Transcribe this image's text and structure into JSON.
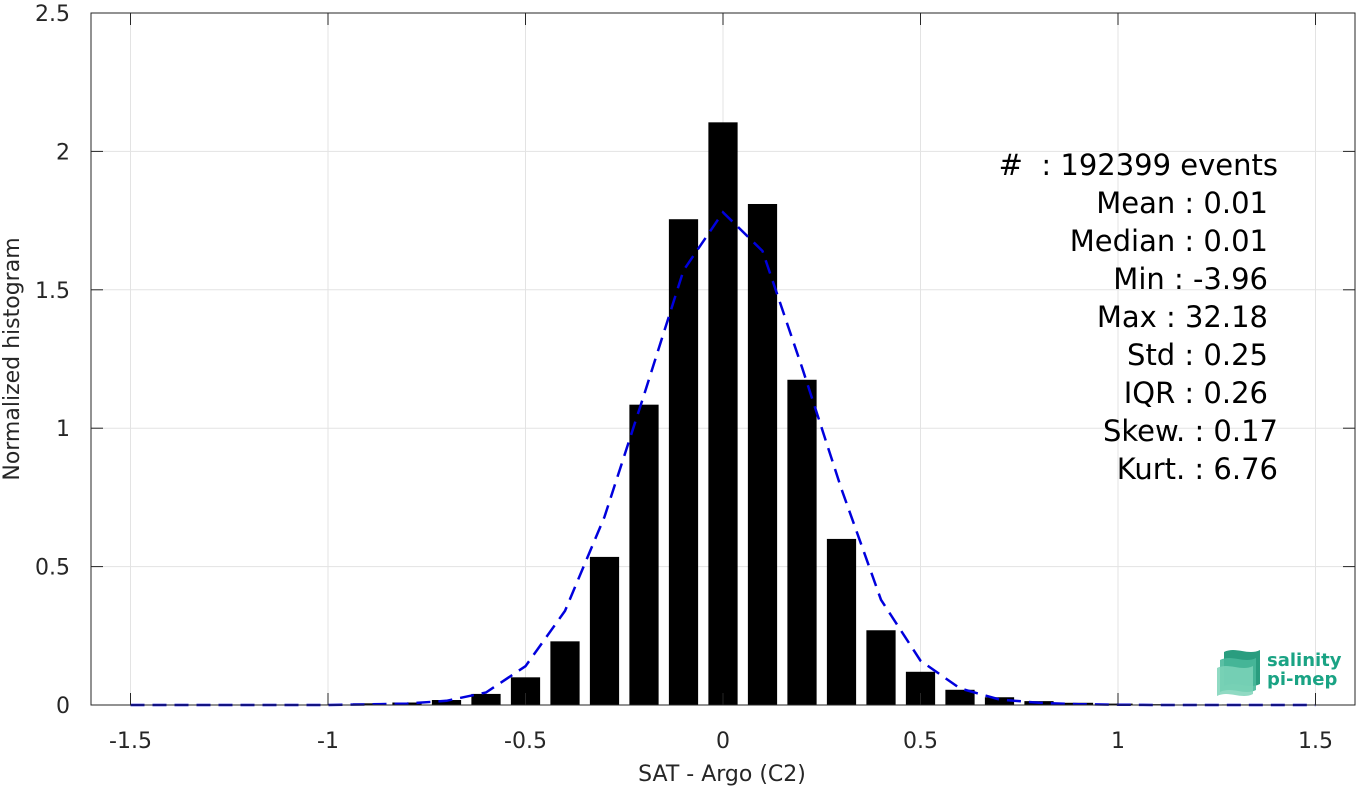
{
  "chart_data": {
    "type": "bar",
    "xlabel": "SAT - Argo (C2)",
    "ylabel": "Normalized histogram",
    "xlim": [
      -1.6,
      1.6
    ],
    "ylim": [
      0,
      2.5
    ],
    "x_ticks": [
      -1.5,
      -1,
      -0.5,
      0,
      0.5,
      1,
      1.5
    ],
    "x_tick_labels": [
      "-1.5",
      "-1",
      "-0.5",
      "0",
      "0.5",
      "1",
      "1.5"
    ],
    "y_ticks": [
      0,
      0.5,
      1,
      1.5,
      2,
      2.5
    ],
    "y_tick_labels": [
      "0",
      "0.5",
      "1",
      "1.5",
      "2",
      "2.5"
    ],
    "grid": true,
    "bar_color": "#000000",
    "bars": {
      "x": [
        -1.5,
        -1.4,
        -1.3,
        -1.2,
        -1.1,
        -1.0,
        -0.9,
        -0.8,
        -0.7,
        -0.6,
        -0.5,
        -0.4,
        -0.3,
        -0.2,
        -0.1,
        0.0,
        0.1,
        0.2,
        0.3,
        0.4,
        0.5,
        0.6,
        0.7,
        0.8,
        0.9,
        1.0,
        1.1,
        1.2,
        1.3,
        1.4,
        1.5
      ],
      "values": [
        0.001,
        0.001,
        0.001,
        0.001,
        0.001,
        0.002,
        0.006,
        0.009,
        0.018,
        0.04,
        0.1,
        0.23,
        0.535,
        1.085,
        1.755,
        2.105,
        1.81,
        1.175,
        0.6,
        0.27,
        0.12,
        0.055,
        0.028,
        0.014,
        0.008,
        0.005,
        0.003,
        0.002,
        0.002,
        0.001,
        0.001
      ]
    },
    "fit_curve": {
      "style": "dashed",
      "color": "#0000dd",
      "x": [
        -1.5,
        -1.4,
        -1.3,
        -1.2,
        -1.1,
        -1.0,
        -0.9,
        -0.8,
        -0.7,
        -0.6,
        -0.5,
        -0.4,
        -0.3,
        -0.2,
        -0.1,
        0.0,
        0.1,
        0.2,
        0.3,
        0.4,
        0.5,
        0.6,
        0.7,
        0.8,
        0.9,
        1.0,
        1.1,
        1.2,
        1.3,
        1.4,
        1.5
      ],
      "y": [
        0.0,
        0.0,
        0.0,
        0.0,
        0.0,
        0.0,
        0.002,
        0.005,
        0.015,
        0.045,
        0.14,
        0.34,
        0.68,
        1.12,
        1.57,
        1.78,
        1.64,
        1.22,
        0.78,
        0.38,
        0.16,
        0.06,
        0.02,
        0.008,
        0.003,
        0.001,
        0.0,
        0.0,
        0.0,
        0.0,
        0.0
      ]
    },
    "annotations": {
      "events": "#  : 192399 events",
      "mean": "Mean : 0.01",
      "median": "Median : 0.01",
      "min": "Min : -3.96",
      "max": "Max : 32.18",
      "std": "Std : 0.25",
      "iqr": "IQR : 0.26",
      "skew": "Skew. : 0.17",
      "kurt": "Kurt. : 6.76"
    }
  },
  "logo": {
    "line1": "salinity",
    "line2": "pi-mep",
    "color": "#1aa384"
  }
}
